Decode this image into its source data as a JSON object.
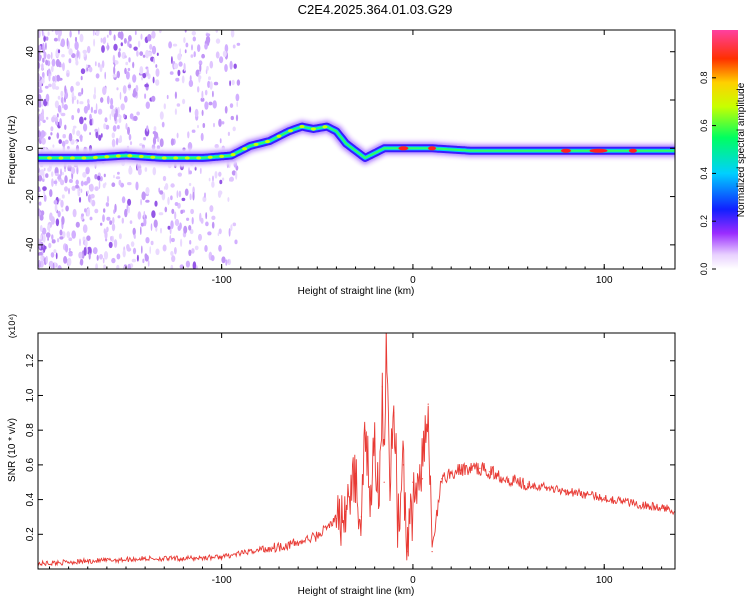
{
  "title": "C2E4.2025.364.01.03.G29",
  "chart_data": [
    {
      "type": "heatmap",
      "xlabel": "Height of straight line (km)",
      "ylabel": "Frequency (Hz)",
      "xlim": [
        -196,
        137
      ],
      "ylim": [
        -50,
        49
      ],
      "xticks": [
        -100,
        0,
        100
      ],
      "yticks": [
        -40,
        -20,
        0,
        20,
        40
      ],
      "colorbar": {
        "label": "Normalized spectral amplitude",
        "range": [
          0,
          1
        ],
        "ticks": [
          "0.0",
          "0.2",
          "0.4",
          "0.6",
          "0.8"
        ]
      },
      "ridge": {
        "x": [
          -196,
          -170,
          -150,
          -130,
          -110,
          -95,
          -85,
          -75,
          -65,
          -58,
          -52,
          -45,
          -40,
          -35,
          -30,
          -25,
          -20,
          -15,
          -10,
          -5,
          0,
          10,
          30,
          60,
          100,
          137
        ],
        "y": [
          -4,
          -4,
          -3,
          -4,
          -4,
          -3,
          1,
          3,
          7,
          9,
          8,
          9,
          7,
          2,
          -1,
          -4,
          -2,
          0,
          0,
          0,
          0,
          0,
          -1,
          -1,
          -1,
          -1
        ]
      }
    },
    {
      "type": "line",
      "xlabel": "Height of straight line (km)",
      "ylabel": "SNR (10 * v/v)",
      "y_multiplier": "(x10⁴)",
      "xlim": [
        -196,
        137
      ],
      "ylim": [
        0,
        1.36
      ],
      "xticks": [
        -100,
        0,
        100
      ],
      "yticks": [
        "0.2",
        "0.4",
        "0.6",
        "0.8",
        "1.0",
        "1.2"
      ],
      "series": [
        {
          "color": "#e83a34",
          "x": [
            -196,
            -180,
            -160,
            -140,
            -120,
            -100,
            -90,
            -80,
            -70,
            -60,
            -50,
            -45,
            -40,
            -35,
            -30,
            -27,
            -25,
            -22,
            -20,
            -18,
            -16,
            -15,
            -14,
            -12,
            -10,
            -8,
            -5,
            -3,
            0,
            5,
            8,
            10,
            15,
            20,
            25,
            30,
            35,
            40,
            50,
            60,
            70,
            80,
            90,
            100,
            110,
            120,
            130,
            137
          ],
          "y": [
            0.03,
            0.04,
            0.05,
            0.06,
            0.06,
            0.07,
            0.09,
            0.11,
            0.13,
            0.15,
            0.19,
            0.24,
            0.29,
            0.33,
            0.55,
            0.3,
            0.8,
            0.4,
            0.75,
            0.35,
            1.05,
            0.5,
            1.36,
            0.45,
            0.9,
            0.25,
            0.6,
            0.1,
            0.5,
            0.52,
            0.95,
            0.1,
            0.52,
            0.55,
            0.57,
            0.58,
            0.58,
            0.56,
            0.52,
            0.49,
            0.47,
            0.45,
            0.43,
            0.41,
            0.39,
            0.37,
            0.35,
            0.34
          ]
        }
      ]
    }
  ]
}
